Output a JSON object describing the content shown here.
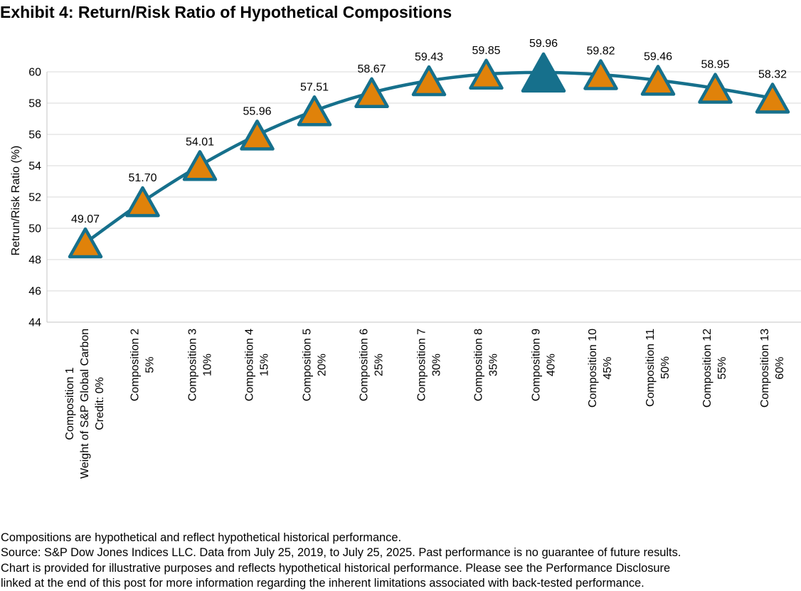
{
  "page": {
    "title": "Exhibit 4: Return/Risk Ratio of Hypothetical Compositions",
    "footnotes": [
      "Compositions are hypothetical and reflect hypothetical historical performance.",
      "Source: S&P Dow Jones Indices LLC. Data from July 25, 2019, to July 25, 2025. Past performance is no guarantee of future results.",
      "Chart is provided for illustrative purposes and reflects hypothetical historical performance. Please see the Performance Disclosure",
      "linked at the end of this post for more information regarding the inherent limitations associated with back-tested performance."
    ]
  },
  "chart_data": {
    "type": "line",
    "title": "Exhibit 4: Return/Risk Ratio of Hypothetical Compositions",
    "xlabel": "",
    "ylabel": "Retrun/Risk Ratio (%)",
    "ylim": [
      44,
      60
    ],
    "ytick_step": 2,
    "yticks": [
      44,
      46,
      48,
      50,
      52,
      54,
      56,
      58,
      60
    ],
    "grid": true,
    "legend_position": "none",
    "categories": [
      [
        "Composition 1",
        "Weight of S&P Global Carbon",
        "Credit: 0%"
      ],
      [
        "Composition 2",
        "5%"
      ],
      [
        "Composition 3",
        "10%"
      ],
      [
        "Composition 4",
        "15%"
      ],
      [
        "Composition 5",
        "20%"
      ],
      [
        "Composition 6",
        "25%"
      ],
      [
        "Composition 7",
        "30%"
      ],
      [
        "Composition 8",
        "35%"
      ],
      [
        "Composition 9",
        "40%"
      ],
      [
        "Composition 10",
        "45%"
      ],
      [
        "Composition 11",
        "50%"
      ],
      [
        "Composition 12",
        "55%"
      ],
      [
        "Composition 13",
        "60%"
      ]
    ],
    "values": [
      49.07,
      51.7,
      54.01,
      55.96,
      57.51,
      58.67,
      59.43,
      59.85,
      59.96,
      59.82,
      59.46,
      58.95,
      58.32
    ],
    "value_labels": [
      "49.07",
      "51.70",
      "54.01",
      "55.96",
      "57.51",
      "58.67",
      "59.43",
      "59.85",
      "59.96",
      "59.82",
      "59.46",
      "58.95",
      "58.32"
    ],
    "highlight_index": 8,
    "highlighted_point": "Composition 9",
    "marker_shape": "triangle",
    "colors": {
      "line": "#16708C",
      "marker_fill": "#E0820A",
      "marker_stroke": "#16708C",
      "gridline": "#D9D9D9",
      "axis": "#C6C6C6",
      "text": "#000000"
    }
  }
}
